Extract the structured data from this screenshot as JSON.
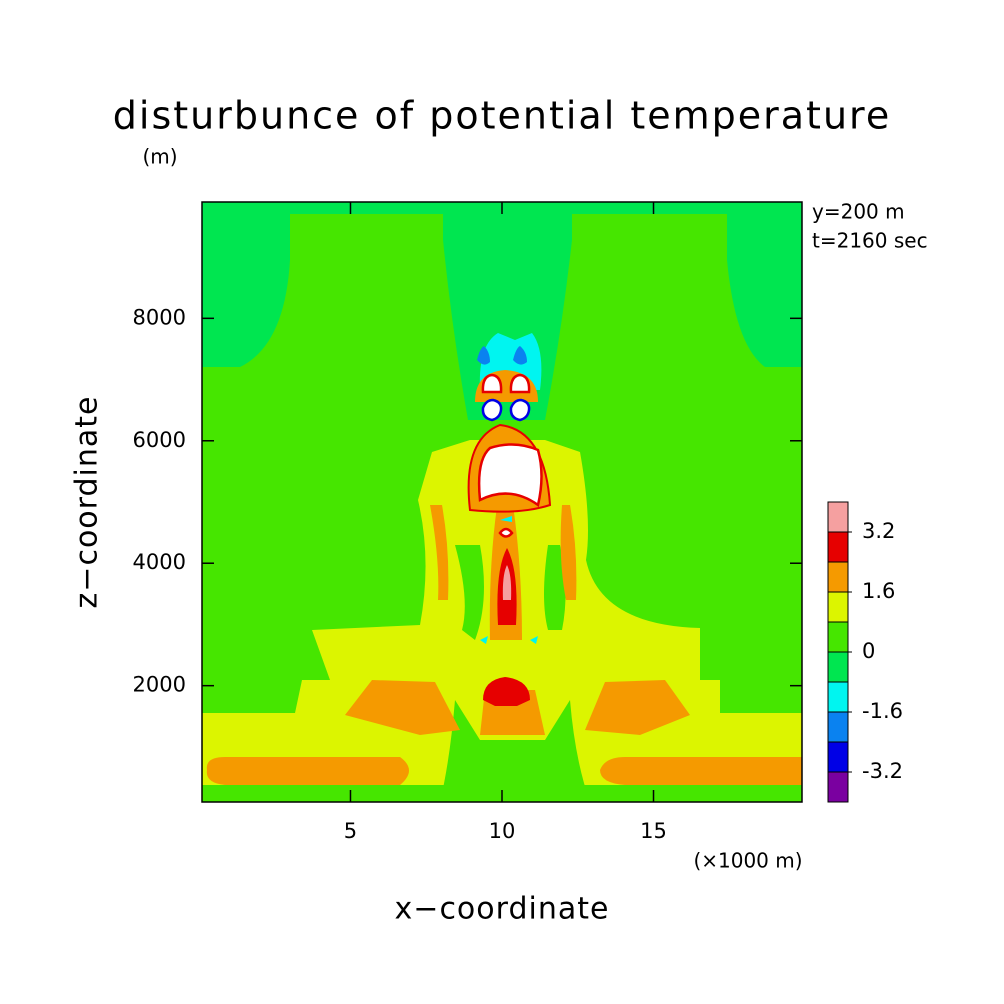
{
  "chart_data": {
    "type": "contour",
    "title": "disturbunce of potential temperature",
    "y_unit": "(m)",
    "x_unit": "(×1000 m)",
    "x_label": "x−coordinate",
    "y_label": "z−coordinate",
    "annotations": [
      "y=200 m",
      "t=2160 sec"
    ],
    "xlim": [
      0.1,
      19.9
    ],
    "ylim": [
      100,
      9900
    ],
    "xticks": [
      5,
      10,
      15
    ],
    "yticks": [
      2000,
      4000,
      6000,
      8000
    ],
    "levels": [
      -3.2,
      -2.4,
      -1.6,
      -0.8,
      0,
      0.8,
      1.6,
      2.4,
      3.2
    ],
    "colors": [
      "#7a00a0",
      "#0000e6",
      "#0a82f0",
      "#00f5f0",
      "#00e650",
      "#46e600",
      "#dcf500",
      "#f59a00",
      "#e60000",
      "#f5a0a0"
    ],
    "colorbar_ticks": [
      -3.2,
      -1.6,
      0,
      1.6,
      3.2
    ]
  }
}
